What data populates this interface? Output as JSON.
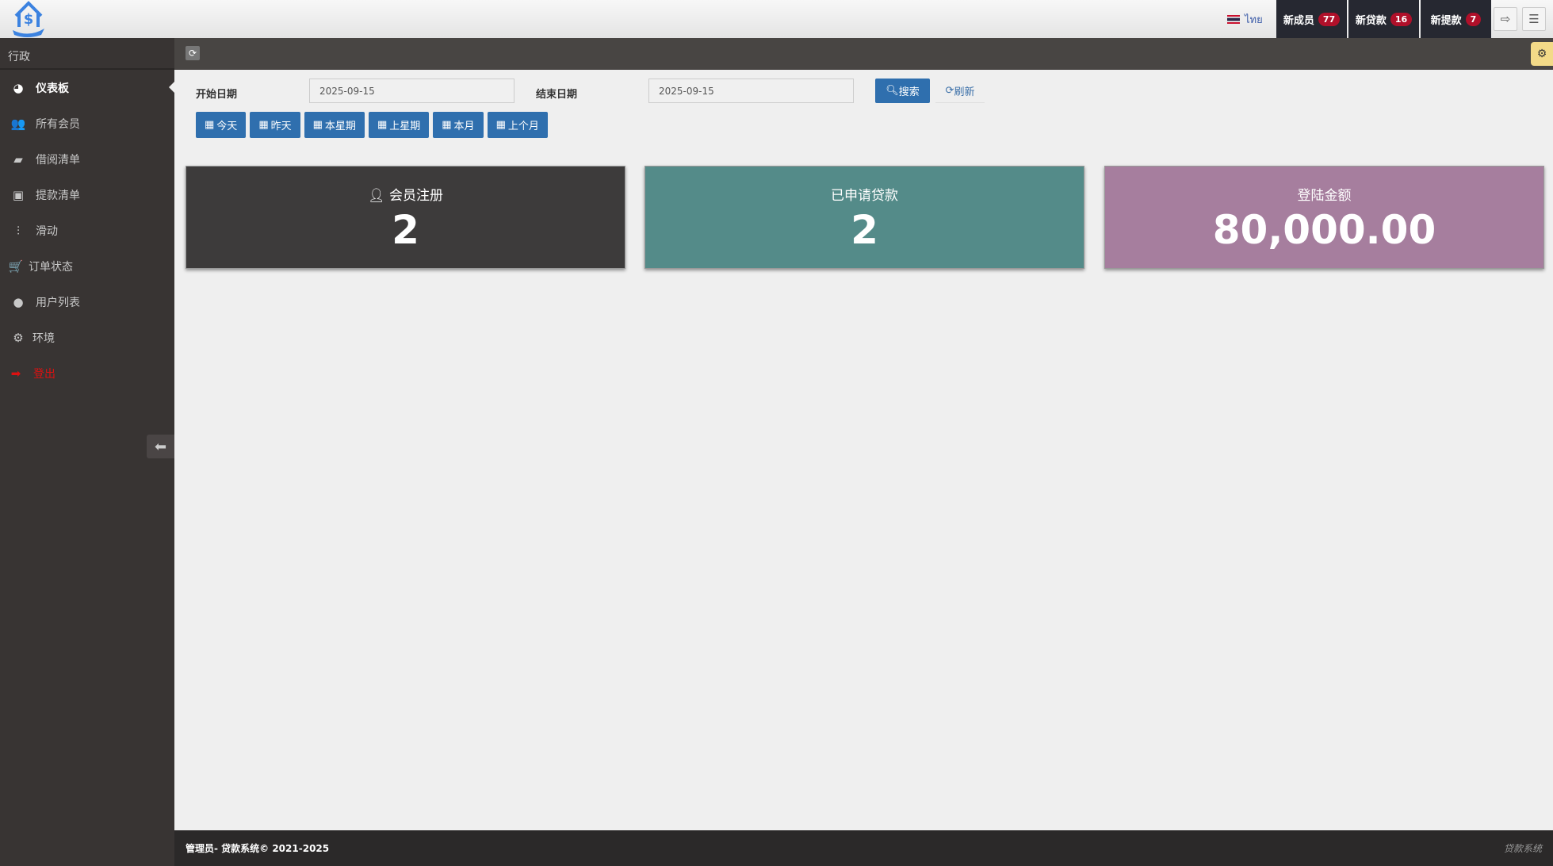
{
  "header": {
    "language": "ไทย",
    "notifications": [
      {
        "label": "新成员",
        "count": "77"
      },
      {
        "label": "新贷款",
        "count": "16"
      },
      {
        "label": "新提款",
        "count": "7"
      }
    ]
  },
  "sidebar": {
    "title": "行政",
    "items": [
      {
        "label": "仪表板",
        "icon": "dashboard-icon"
      },
      {
        "label": "所有会员",
        "icon": "users-icon"
      },
      {
        "label": "借阅清单",
        "icon": "book-icon"
      },
      {
        "label": "提款清单",
        "icon": "money-icon"
      },
      {
        "label": "滑动",
        "icon": "sliders-icon"
      },
      {
        "label": "订单状态",
        "icon": "cart-icon"
      },
      {
        "label": "用户列表",
        "icon": "user-icon"
      },
      {
        "label": "环境",
        "icon": "gear-icon"
      },
      {
        "label": "登出",
        "icon": "sign-out-icon"
      }
    ]
  },
  "filter": {
    "start_label": "开始日期",
    "start_value": "2025-09-15",
    "end_label": "结束日期",
    "end_value": "2025-09-15",
    "search": "搜索",
    "refresh": "刷新",
    "quick": [
      "今天",
      "昨天",
      "本星期",
      "上星期",
      "本月",
      "上个月"
    ]
  },
  "cards": [
    {
      "title": "会员注册",
      "value": "2",
      "color": "#3d3b3b"
    },
    {
      "title": "已申请贷款",
      "value": "2",
      "color": "#548b89"
    },
    {
      "title": "登陆金额",
      "value": "80,000.00",
      "color": "#a67e9e"
    }
  ],
  "footer": {
    "left": "管理员- 贷款系统© 2021-2025",
    "right": "贷款系统"
  }
}
